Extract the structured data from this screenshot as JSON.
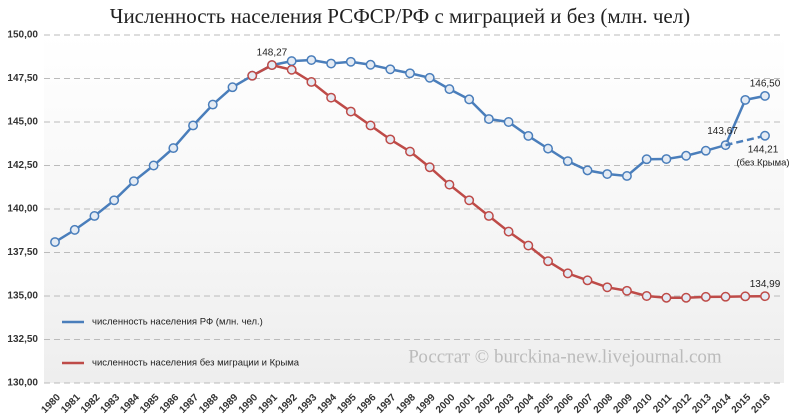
{
  "chart_data": {
    "type": "line",
    "title": "Численность населения РСФСР/РФ с миграцией и без (млн. чел)",
    "annotation": "Росстат © burckina-new.livejournal.com",
    "categories": [
      "1980",
      "1981",
      "1982",
      "1983",
      "1984",
      "1985",
      "1986",
      "1987",
      "1988",
      "1989",
      "1990",
      "1991",
      "1992",
      "1993",
      "1994",
      "1995",
      "1996",
      "1997",
      "1998",
      "1999",
      "2000",
      "2001",
      "2002",
      "2003",
      "2004",
      "2005",
      "2006",
      "2007",
      "2008",
      "2009",
      "2010",
      "2011",
      "2012",
      "2013",
      "2014",
      "2015",
      "2016"
    ],
    "series": [
      {
        "name": "численность населения РФ (млн. чел.)",
        "color": "#4a7ebb",
        "dashed": false,
        "legend": true,
        "values": [
          138.1,
          138.8,
          139.6,
          140.5,
          141.6,
          142.5,
          143.5,
          144.8,
          146.0,
          147.0,
          147.66,
          148.27,
          148.5,
          148.56,
          148.36,
          148.46,
          148.29,
          148.03,
          147.8,
          147.54,
          146.89,
          146.3,
          145.17,
          145.0,
          144.2,
          143.47,
          142.75,
          142.22,
          142.01,
          141.9,
          142.86,
          142.87,
          143.06,
          143.35,
          143.67,
          146.27,
          146.5
        ],
        "value_labels": [
          null,
          null,
          null,
          null,
          null,
          null,
          null,
          null,
          null,
          null,
          null,
          "148,27",
          null,
          null,
          null,
          null,
          null,
          null,
          null,
          null,
          null,
          null,
          null,
          null,
          null,
          null,
          null,
          null,
          null,
          null,
          null,
          null,
          null,
          null,
          "143,67",
          null,
          "146,50"
        ]
      },
      {
        "name": "численность населения без миграции и Крыма",
        "color": "#be4b48",
        "dashed": false,
        "legend": true,
        "values": [
          null,
          null,
          null,
          null,
          null,
          null,
          null,
          null,
          null,
          null,
          147.66,
          148.27,
          148.0,
          147.3,
          146.4,
          145.6,
          144.8,
          144.0,
          143.3,
          142.4,
          141.4,
          140.5,
          139.6,
          138.7,
          137.9,
          137.0,
          136.3,
          135.9,
          135.5,
          135.3,
          135.0,
          134.9,
          134.9,
          134.95,
          134.96,
          134.98,
          134.99
        ],
        "value_labels": [
          null,
          null,
          null,
          null,
          null,
          null,
          null,
          null,
          null,
          null,
          null,
          null,
          null,
          null,
          null,
          null,
          null,
          null,
          null,
          null,
          null,
          null,
          null,
          null,
          null,
          null,
          null,
          null,
          null,
          null,
          null,
          null,
          null,
          null,
          null,
          null,
          "134,99"
        ]
      },
      {
        "name": "(без Крыма)",
        "color": "#4a7ebb",
        "dashed": true,
        "legend": false,
        "values": [
          null,
          null,
          null,
          null,
          null,
          null,
          null,
          null,
          null,
          null,
          null,
          null,
          null,
          null,
          null,
          null,
          null,
          null,
          null,
          null,
          null,
          null,
          null,
          null,
          null,
          null,
          null,
          null,
          null,
          null,
          null,
          null,
          null,
          null,
          143.67,
          143.94,
          144.21
        ],
        "value_labels": [
          null,
          null,
          null,
          null,
          null,
          null,
          null,
          null,
          null,
          null,
          null,
          null,
          null,
          null,
          null,
          null,
          null,
          null,
          null,
          null,
          null,
          null,
          null,
          null,
          null,
          null,
          null,
          null,
          null,
          null,
          null,
          null,
          null,
          null,
          null,
          null,
          "144,21"
        ]
      }
    ],
    "ylim": [
      130,
      150
    ],
    "yticks": [
      {
        "value": 130,
        "label": "130,00"
      },
      {
        "value": 132.5,
        "label": "132,50"
      },
      {
        "value": 135,
        "label": "135,00"
      },
      {
        "value": 137.5,
        "label": "137,50"
      },
      {
        "value": 140,
        "label": "140,00"
      },
      {
        "value": 142.5,
        "label": "142,50"
      },
      {
        "value": 145,
        "label": "145,00"
      },
      {
        "value": 147.5,
        "label": "147,50"
      },
      {
        "value": 150,
        "label": "150,00"
      }
    ],
    "grid": true
  }
}
